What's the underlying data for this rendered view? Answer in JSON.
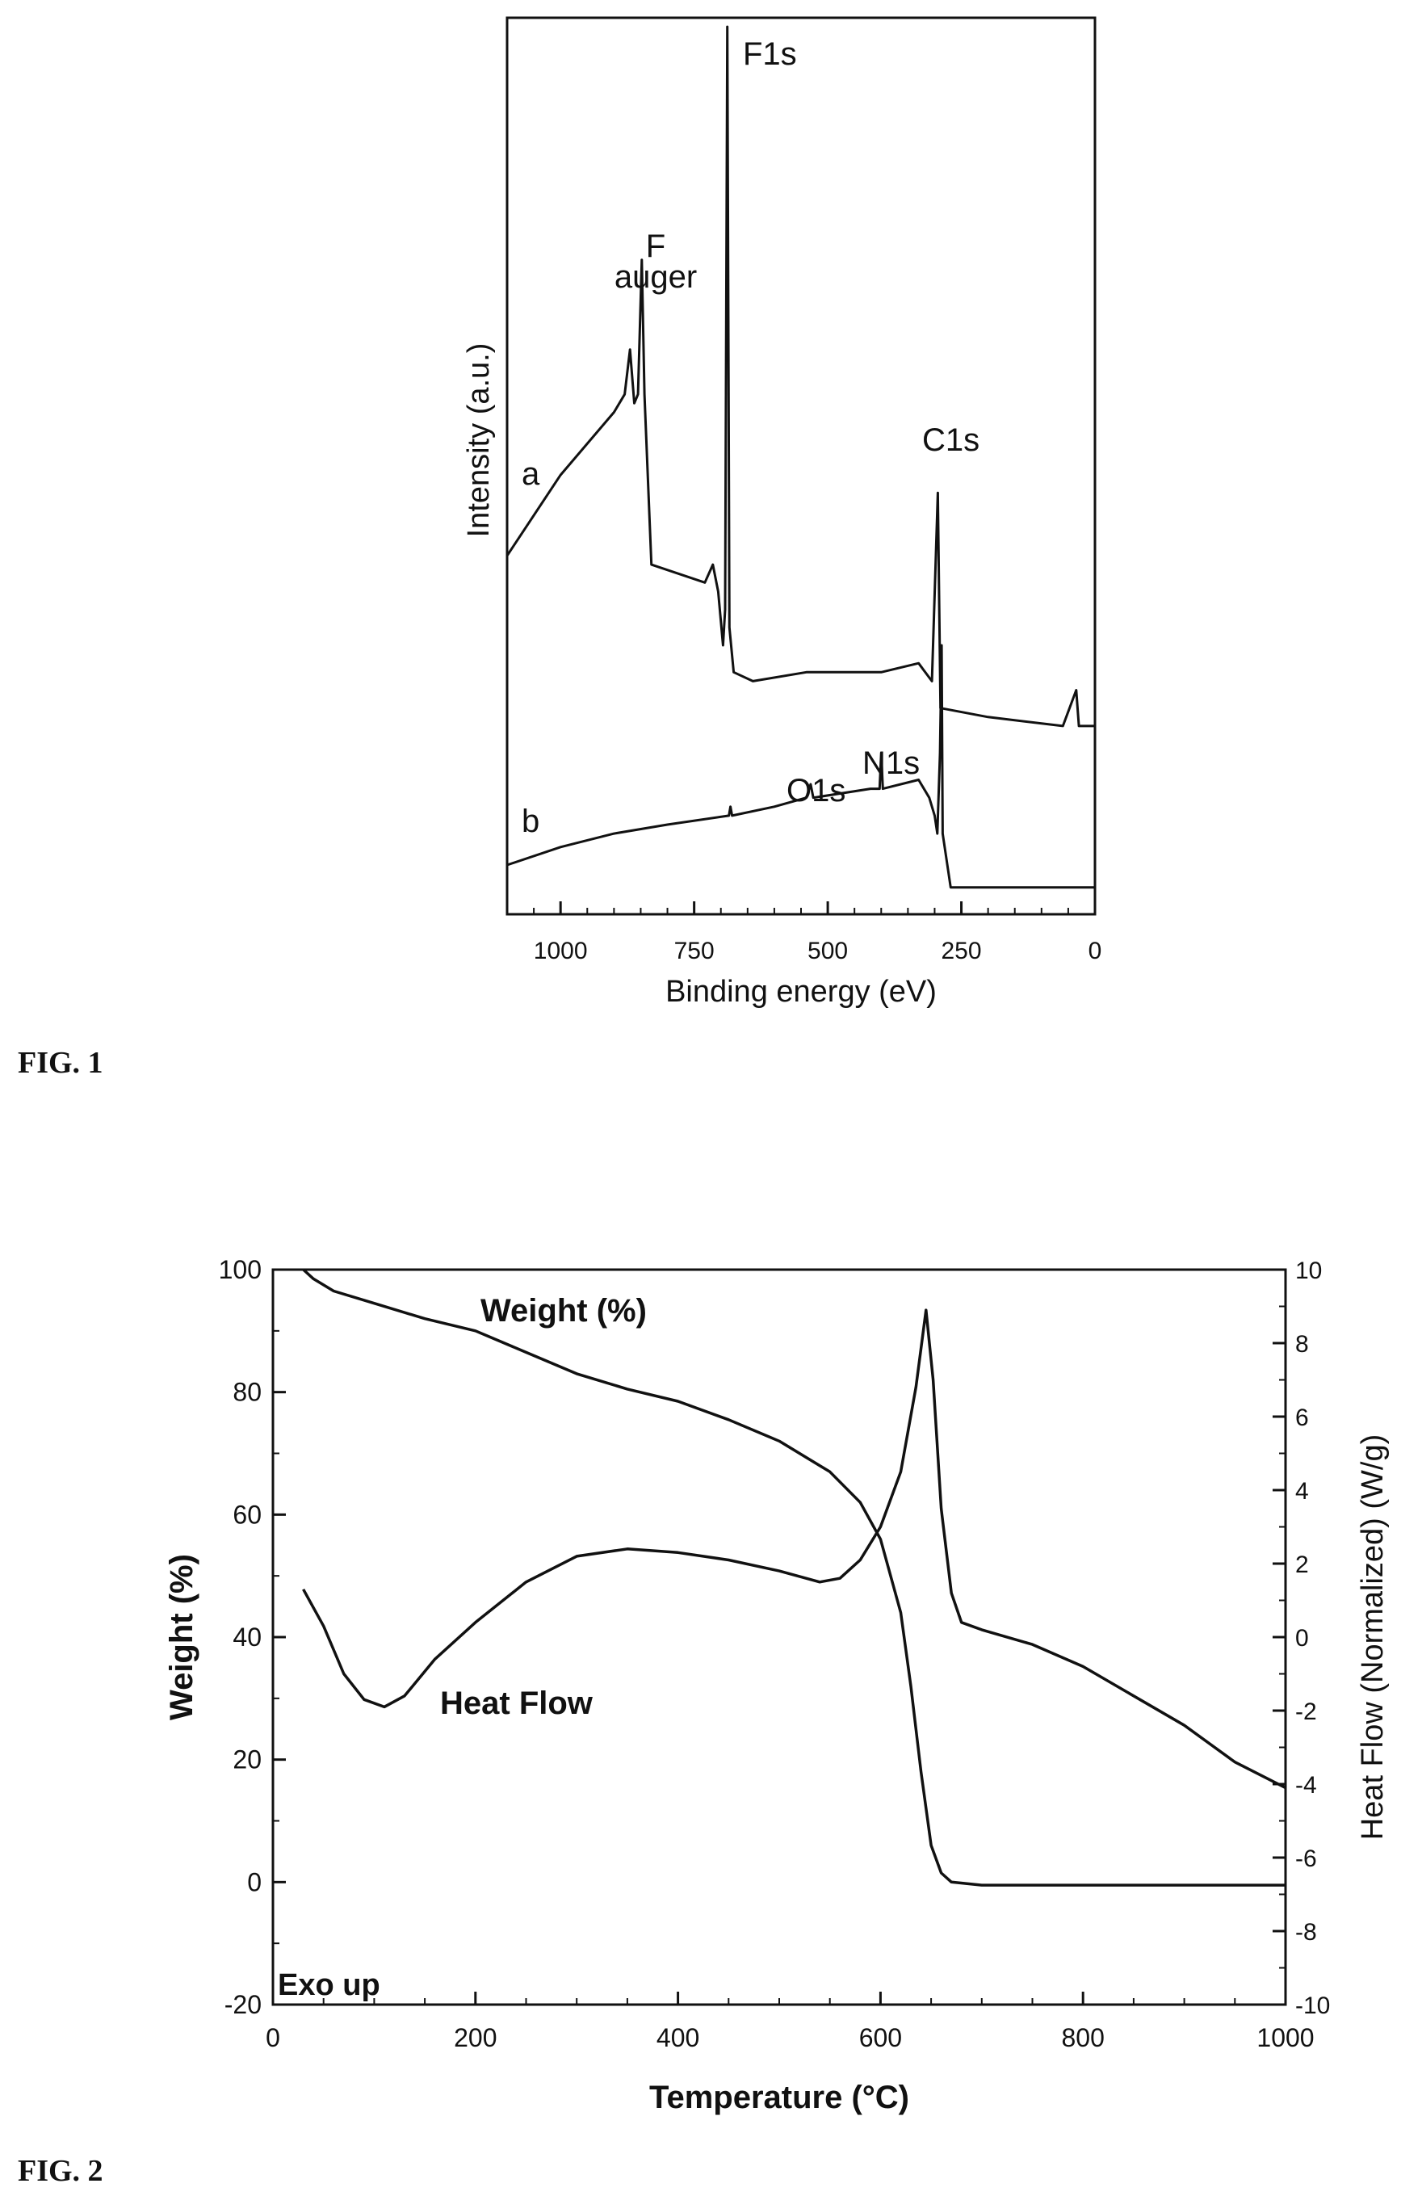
{
  "fig1": {
    "label": "FIG. 1",
    "chart_data": {
      "type": "line",
      "xlabel": "Binding energy (eV)",
      "ylabel": "Intensity (a.u.)",
      "xlim": [
        1100,
        0
      ],
      "x_reversed": true,
      "x_ticks": [
        1000,
        750,
        500,
        250,
        0
      ],
      "y_ticks_shown": false,
      "series": [
        {
          "name": "a",
          "points": [
            [
              1100,
              0.4
            ],
            [
              1000,
              0.49
            ],
            [
              900,
              0.56
            ],
            [
              880,
              0.58
            ],
            [
              870,
              0.63
            ],
            [
              862,
              0.57
            ],
            [
              855,
              0.58
            ],
            [
              848,
              0.73
            ],
            [
              843,
              0.58
            ],
            [
              830,
              0.39
            ],
            [
              780,
              0.38
            ],
            [
              730,
              0.37
            ],
            [
              715,
              0.39
            ],
            [
              705,
              0.36
            ],
            [
              696,
              0.3
            ],
            [
              692,
              0.34
            ],
            [
              688,
              0.99
            ],
            [
              684,
              0.32
            ],
            [
              676,
              0.27
            ],
            [
              640,
              0.26
            ],
            [
              540,
              0.27
            ],
            [
              400,
              0.27
            ],
            [
              330,
              0.28
            ],
            [
              305,
              0.26
            ],
            [
              294,
              0.47
            ],
            [
              289,
              0.23
            ],
            [
              200,
              0.22
            ],
            [
              60,
              0.21
            ],
            [
              35,
              0.25
            ],
            [
              30,
              0.21
            ],
            [
              0,
              0.21
            ]
          ]
        },
        {
          "name": "b",
          "points": [
            [
              1100,
              0.055
            ],
            [
              1000,
              0.075
            ],
            [
              900,
              0.09
            ],
            [
              800,
              0.1
            ],
            [
              685,
              0.11
            ],
            [
              682,
              0.12
            ],
            [
              679,
              0.11
            ],
            [
              600,
              0.12
            ],
            [
              540,
              0.13
            ],
            [
              532,
              0.145
            ],
            [
              527,
              0.13
            ],
            [
              420,
              0.14
            ],
            [
              403,
              0.14
            ],
            [
              400,
              0.18
            ],
            [
              397,
              0.14
            ],
            [
              330,
              0.15
            ],
            [
              310,
              0.13
            ],
            [
              300,
              0.11
            ],
            [
              295,
              0.09
            ],
            [
              290,
              0.18
            ],
            [
              287,
              0.3
            ],
            [
              285,
              0.09
            ],
            [
              270,
              0.03
            ],
            [
              150,
              0.03
            ],
            [
              0,
              0.03
            ]
          ]
        }
      ],
      "annotations": [
        "F",
        "auger",
        "F1s",
        "C1s",
        "O1s",
        "N1s"
      ]
    }
  },
  "fig2": {
    "label": "FIG. 2",
    "chart_data": {
      "type": "line",
      "xlabel": "Temperature (°C)",
      "ylabel_left": "Weight (%)",
      "ylabel_right": "Heat Flow (Normalized) (W/g)",
      "xlim": [
        0,
        1000
      ],
      "ylim_left": [
        -20,
        100
      ],
      "ylim_right": [
        -10,
        10
      ],
      "x_ticks": [
        0,
        200,
        400,
        600,
        800,
        1000
      ],
      "y_ticks_left": [
        -20,
        0,
        20,
        40,
        60,
        80,
        100
      ],
      "y_ticks_right": [
        -10,
        -8,
        -6,
        -4,
        -2,
        0,
        2,
        4,
        6,
        8,
        10
      ],
      "series": [
        {
          "name": "Weight (%)",
          "axis": "left",
          "points": [
            [
              30,
              100
            ],
            [
              40,
              98.5
            ],
            [
              60,
              96.5
            ],
            [
              100,
              94.5
            ],
            [
              150,
              92
            ],
            [
              200,
              90
            ],
            [
              250,
              86.5
            ],
            [
              300,
              83
            ],
            [
              350,
              80.5
            ],
            [
              400,
              78.5
            ],
            [
              450,
              75.5
            ],
            [
              500,
              72
            ],
            [
              550,
              67
            ],
            [
              580,
              62
            ],
            [
              600,
              56
            ],
            [
              620,
              44
            ],
            [
              630,
              32
            ],
            [
              640,
              18
            ],
            [
              650,
              6
            ],
            [
              660,
              1.5
            ],
            [
              670,
              0
            ],
            [
              700,
              -0.5
            ],
            [
              800,
              -0.5
            ],
            [
              900,
              -0.5
            ],
            [
              1000,
              -0.5
            ]
          ]
        },
        {
          "name": "Heat Flow",
          "axis": "right",
          "points": [
            [
              30,
              1.3
            ],
            [
              50,
              0.3
            ],
            [
              70,
              -1
            ],
            [
              90,
              -1.7
            ],
            [
              110,
              -1.9
            ],
            [
              130,
              -1.6
            ],
            [
              160,
              -0.6
            ],
            [
              200,
              0.4
            ],
            [
              250,
              1.5
            ],
            [
              300,
              2.2
            ],
            [
              350,
              2.4
            ],
            [
              400,
              2.3
            ],
            [
              450,
              2.1
            ],
            [
              500,
              1.8
            ],
            [
              540,
              1.5
            ],
            [
              560,
              1.6
            ],
            [
              580,
              2.1
            ],
            [
              600,
              3
            ],
            [
              620,
              4.5
            ],
            [
              635,
              6.8
            ],
            [
              645,
              8.9
            ],
            [
              652,
              7
            ],
            [
              660,
              3.5
            ],
            [
              670,
              1.2
            ],
            [
              680,
              0.4
            ],
            [
              700,
              0.2
            ],
            [
              750,
              -0.2
            ],
            [
              800,
              -0.8
            ],
            [
              850,
              -1.6
            ],
            [
              900,
              -2.4
            ],
            [
              950,
              -3.4
            ],
            [
              1000,
              -4.1
            ]
          ]
        }
      ],
      "annotations": [
        "Weight (%)",
        "Heat Flow",
        "Exo up"
      ]
    }
  }
}
